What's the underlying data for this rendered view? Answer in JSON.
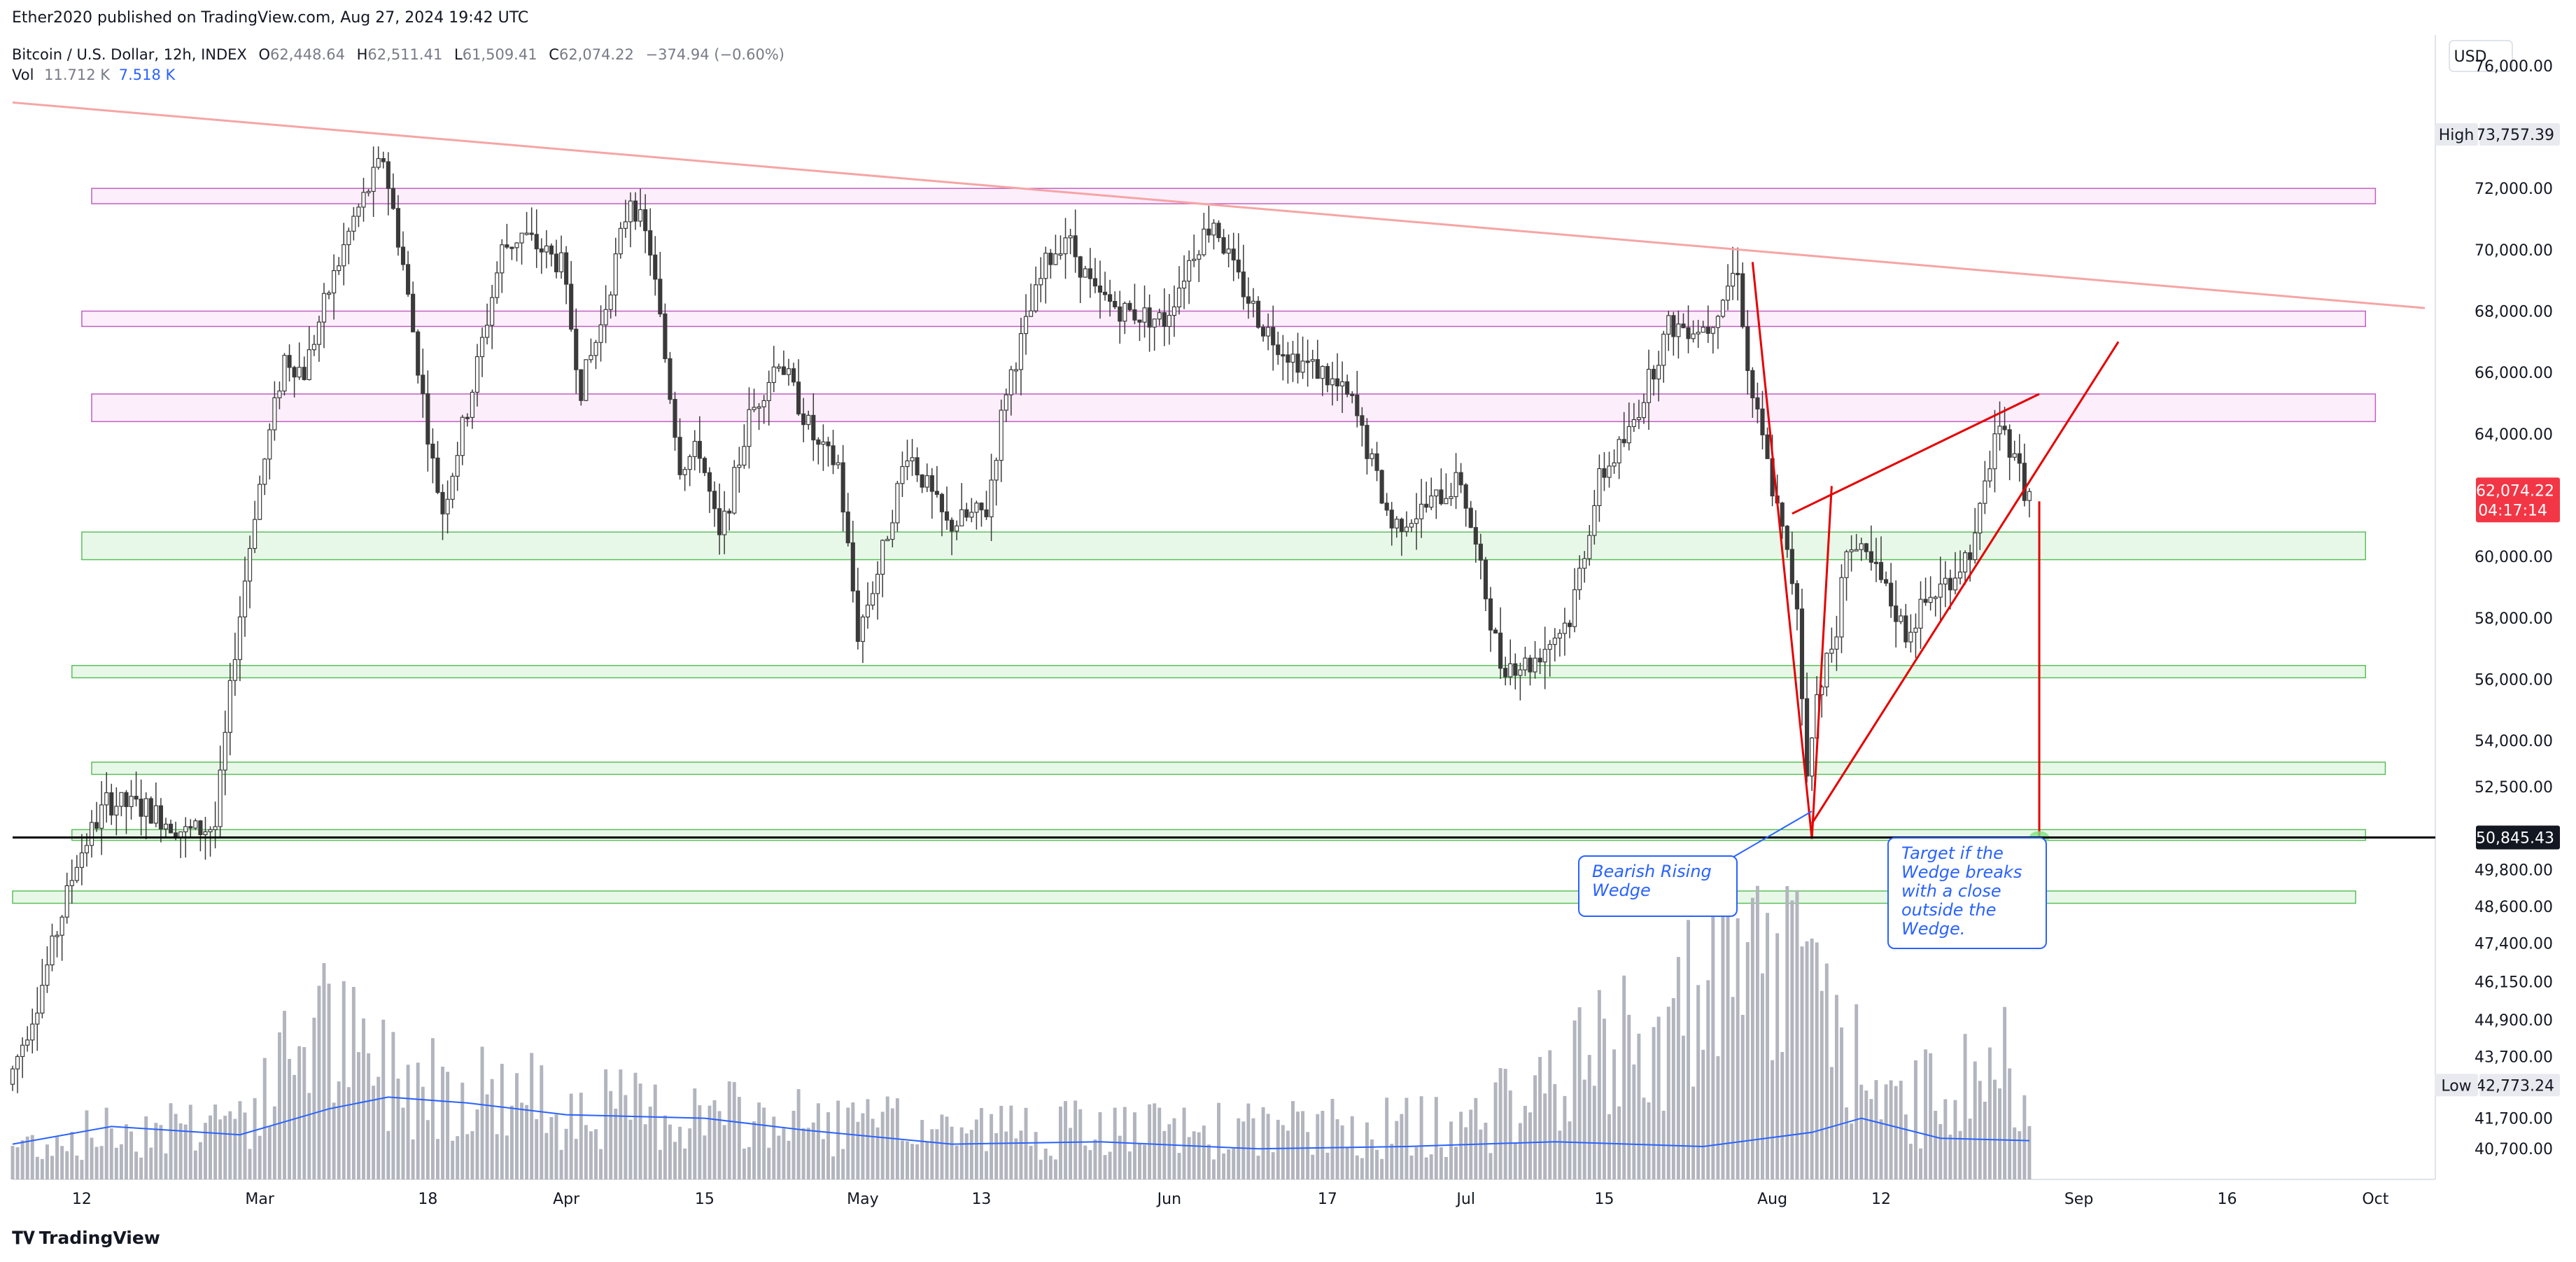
{
  "header": {
    "published": "Ether2020 published on TradingView.com, Aug 27, 2024 19:42 UTC",
    "symbol": "Bitcoin / U.S. Dollar, 12h, INDEX",
    "ohlc": {
      "open_label": "O",
      "open": "62,448.64",
      "high_label": "H",
      "high": "62,511.41",
      "low_label": "L",
      "low": "61,509.41",
      "close_label": "C",
      "close": "62,074.22",
      "change": "−374.94 (−0.60%)"
    },
    "volume": {
      "label": "Vol",
      "value": "11.712 K",
      "ma": "7.518 K"
    }
  },
  "currency": "USD",
  "markers": {
    "high": {
      "label": "High",
      "value": "73,757.39"
    },
    "low": {
      "label": "Low",
      "value": "42,773.24"
    },
    "last": {
      "value": "62,074.22",
      "countdown": "04:17:14"
    },
    "level": {
      "value": "50,845.43"
    }
  },
  "annotations": {
    "wedge": "Bearish Rising Wedge",
    "target": "Target if the Wedge breaks with a close outside the Wedge."
  },
  "branding": "TradingView",
  "colors": {
    "up_candle": "#ffffff",
    "down_candle": "#3a3a3a",
    "wick": "#3a3a3a",
    "volume_bar": "#b2b5be",
    "volume_ma": "#2962ff",
    "resistance_zone_fill": "#fdeefb",
    "resistance_zone_stroke": "#c060c0",
    "support_zone_fill": "#e8f8e8",
    "support_zone_stroke": "#5cbf5c",
    "wedge": "#e60000",
    "trendline": "#f5a5a5",
    "last_price": "#f23645",
    "level_line": "#000000"
  },
  "chart_data": {
    "type": "candlestick",
    "interval": "12h",
    "x_start": "2024-02-05",
    "x_end": "2024-10-06",
    "xticks": [
      {
        "date": "2024-02-12",
        "label": "12"
      },
      {
        "date": "2024-03-01",
        "label": "Mar"
      },
      {
        "date": "2024-03-18",
        "label": "18"
      },
      {
        "date": "2024-04-01",
        "label": "Apr"
      },
      {
        "date": "2024-04-15",
        "label": "15"
      },
      {
        "date": "2024-05-01",
        "label": "May"
      },
      {
        "date": "2024-05-13",
        "label": "13"
      },
      {
        "date": "2024-06-01",
        "label": "Jun"
      },
      {
        "date": "2024-06-17",
        "label": "17"
      },
      {
        "date": "2024-07-01",
        "label": "Jul"
      },
      {
        "date": "2024-07-15",
        "label": "15"
      },
      {
        "date": "2024-08-01",
        "label": "Aug"
      },
      {
        "date": "2024-08-12",
        "label": "12"
      },
      {
        "date": "2024-09-01",
        "label": "Sep"
      },
      {
        "date": "2024-09-16",
        "label": "16"
      },
      {
        "date": "2024-10-01",
        "label": "Oct"
      }
    ],
    "ylim": [
      39700,
      77000
    ],
    "yticks": [
      {
        "value": 76000,
        "label": "76,000.00"
      },
      {
        "value": 72000,
        "label": "72,000.00"
      },
      {
        "value": 70000,
        "label": "70,000.00"
      },
      {
        "value": 68000,
        "label": "68,000.00"
      },
      {
        "value": 66000,
        "label": "66,000.00"
      },
      {
        "value": 64000,
        "label": "64,000.00"
      },
      {
        "value": 60000,
        "label": "60,000.00"
      },
      {
        "value": 58000,
        "label": "58,000.00"
      },
      {
        "value": 56000,
        "label": "56,000.00"
      },
      {
        "value": 54000,
        "label": "54,000.00"
      },
      {
        "value": 52500,
        "label": "52,500.00"
      },
      {
        "value": 49800,
        "label": "49,800.00"
      },
      {
        "value": 48600,
        "label": "48,600.00"
      },
      {
        "value": 47400,
        "label": "47,400.00"
      },
      {
        "value": 46150,
        "label": "46,150.00"
      },
      {
        "value": 44900,
        "label": "44,900.00"
      },
      {
        "value": 43700,
        "label": "43,700.00"
      },
      {
        "value": 41700,
        "label": "41,700.00"
      },
      {
        "value": 40700,
        "label": "40,700.00"
      }
    ],
    "price_path": [
      {
        "date": "2024-02-05",
        "price": 42800
      },
      {
        "date": "2024-02-08",
        "price": 45500
      },
      {
        "date": "2024-02-10",
        "price": 47800
      },
      {
        "date": "2024-02-12",
        "price": 50100
      },
      {
        "date": "2024-02-15",
        "price": 52000
      },
      {
        "date": "2024-02-19",
        "price": 51800
      },
      {
        "date": "2024-02-23",
        "price": 51000
      },
      {
        "date": "2024-02-26",
        "price": 51200
      },
      {
        "date": "2024-02-28",
        "price": 57000
      },
      {
        "date": "2024-03-01",
        "price": 61500
      },
      {
        "date": "2024-03-04",
        "price": 66500
      },
      {
        "date": "2024-03-06",
        "price": 66000
      },
      {
        "date": "2024-03-08",
        "price": 68200
      },
      {
        "date": "2024-03-11",
        "price": 71000
      },
      {
        "date": "2024-03-14",
        "price": 73000
      },
      {
        "date": "2024-03-16",
        "price": 69500
      },
      {
        "date": "2024-03-19",
        "price": 63000
      },
      {
        "date": "2024-03-20",
        "price": 61500
      },
      {
        "date": "2024-03-23",
        "price": 65500
      },
      {
        "date": "2024-03-26",
        "price": 70000
      },
      {
        "date": "2024-03-28",
        "price": 70500
      },
      {
        "date": "2024-04-01",
        "price": 69500
      },
      {
        "date": "2024-04-03",
        "price": 65500
      },
      {
        "date": "2024-04-05",
        "price": 67500
      },
      {
        "date": "2024-04-08",
        "price": 71800
      },
      {
        "date": "2024-04-10",
        "price": 70000
      },
      {
        "date": "2024-04-13",
        "price": 63000
      },
      {
        "date": "2024-04-15",
        "price": 63500
      },
      {
        "date": "2024-04-17",
        "price": 60500
      },
      {
        "date": "2024-04-20",
        "price": 64500
      },
      {
        "date": "2024-04-23",
        "price": 66500
      },
      {
        "date": "2024-04-27",
        "price": 63500
      },
      {
        "date": "2024-04-29",
        "price": 63000
      },
      {
        "date": "2024-05-01",
        "price": 57500
      },
      {
        "date": "2024-05-03",
        "price": 59500
      },
      {
        "date": "2024-05-06",
        "price": 63500
      },
      {
        "date": "2024-05-10",
        "price": 61000
      },
      {
        "date": "2024-05-14",
        "price": 61500
      },
      {
        "date": "2024-05-16",
        "price": 65500
      },
      {
        "date": "2024-05-20",
        "price": 69500
      },
      {
        "date": "2024-05-22",
        "price": 70500
      },
      {
        "date": "2024-05-25",
        "price": 68500
      },
      {
        "date": "2024-05-28",
        "price": 68000
      },
      {
        "date": "2024-06-01",
        "price": 67700
      },
      {
        "date": "2024-06-04",
        "price": 70000
      },
      {
        "date": "2024-06-06",
        "price": 71000
      },
      {
        "date": "2024-06-08",
        "price": 69300
      },
      {
        "date": "2024-06-11",
        "price": 67500
      },
      {
        "date": "2024-06-14",
        "price": 66500
      },
      {
        "date": "2024-06-17",
        "price": 66000
      },
      {
        "date": "2024-06-20",
        "price": 65000
      },
      {
        "date": "2024-06-24",
        "price": 61000
      },
      {
        "date": "2024-06-27",
        "price": 61500
      },
      {
        "date": "2024-07-01",
        "price": 62500
      },
      {
        "date": "2024-07-05",
        "price": 56500
      },
      {
        "date": "2024-07-08",
        "price": 56500
      },
      {
        "date": "2024-07-12",
        "price": 58000
      },
      {
        "date": "2024-07-15",
        "price": 62500
      },
      {
        "date": "2024-07-18",
        "price": 64000
      },
      {
        "date": "2024-07-22",
        "price": 67500
      },
      {
        "date": "2024-07-26",
        "price": 67500
      },
      {
        "date": "2024-07-29",
        "price": 69500
      },
      {
        "date": "2024-07-30",
        "price": 66000
      },
      {
        "date": "2024-08-02",
        "price": 61500
      },
      {
        "date": "2024-08-04",
        "price": 58500
      },
      {
        "date": "2024-08-05",
        "price": 52500
      },
      {
        "date": "2024-08-06",
        "price": 55500
      },
      {
        "date": "2024-08-08",
        "price": 57500
      },
      {
        "date": "2024-08-09",
        "price": 60500
      },
      {
        "date": "2024-08-12",
        "price": 59500
      },
      {
        "date": "2024-08-15",
        "price": 57500
      },
      {
        "date": "2024-08-17",
        "price": 58500
      },
      {
        "date": "2024-08-20",
        "price": 59500
      },
      {
        "date": "2024-08-22",
        "price": 60500
      },
      {
        "date": "2024-08-24",
        "price": 64000
      },
      {
        "date": "2024-08-26",
        "price": 63500
      },
      {
        "date": "2024-08-27",
        "price": 62074.22
      }
    ],
    "volume_path": [
      {
        "date": "2024-02-05",
        "value": 3.2
      },
      {
        "date": "2024-03-01",
        "value": 6.5
      },
      {
        "date": "2024-03-06",
        "value": 15.0
      },
      {
        "date": "2024-03-12",
        "value": 10.5
      },
      {
        "date": "2024-04-01",
        "value": 7.0
      },
      {
        "date": "2024-04-15",
        "value": 6.0
      },
      {
        "date": "2024-05-01",
        "value": 5.0
      },
      {
        "date": "2024-06-01",
        "value": 4.5
      },
      {
        "date": "2024-07-01",
        "value": 5.0
      },
      {
        "date": "2024-08-05",
        "value": 21.0
      },
      {
        "date": "2024-08-12",
        "value": 6.0
      },
      {
        "date": "2024-08-27",
        "value": 11.712
      }
    ],
    "volume_max": 25,
    "volume_ma_path": [
      {
        "date": "2024-02-05",
        "value": 3.0
      },
      {
        "date": "2024-02-15",
        "value": 4.5
      },
      {
        "date": "2024-02-28",
        "value": 3.8
      },
      {
        "date": "2024-03-08",
        "value": 6.0
      },
      {
        "date": "2024-03-14",
        "value": 7.0
      },
      {
        "date": "2024-03-22",
        "value": 6.5
      },
      {
        "date": "2024-04-01",
        "value": 5.5
      },
      {
        "date": "2024-04-15",
        "value": 5.2
      },
      {
        "date": "2024-04-25",
        "value": 4.2
      },
      {
        "date": "2024-05-10",
        "value": 3.0
      },
      {
        "date": "2024-05-25",
        "value": 3.2
      },
      {
        "date": "2024-06-10",
        "value": 2.6
      },
      {
        "date": "2024-06-25",
        "value": 2.8
      },
      {
        "date": "2024-07-10",
        "value": 3.2
      },
      {
        "date": "2024-07-25",
        "value": 2.8
      },
      {
        "date": "2024-08-05",
        "value": 4.0
      },
      {
        "date": "2024-08-10",
        "value": 5.2
      },
      {
        "date": "2024-08-18",
        "value": 3.5
      },
      {
        "date": "2024-08-27",
        "value": 3.3
      }
    ],
    "resistance_zones": [
      {
        "x1": "2024-02-13",
        "x2": "2024-10-01",
        "y1": 72000,
        "y2": 71500
      },
      {
        "x1": "2024-02-12",
        "x2": "2024-09-30",
        "y1": 68000,
        "y2": 67500
      },
      {
        "x1": "2024-02-13",
        "x2": "2024-10-01",
        "y1": 65300,
        "y2": 64400
      }
    ],
    "support_zones": [
      {
        "x1": "2024-02-12",
        "x2": "2024-09-30",
        "y1": 60800,
        "y2": 59900
      },
      {
        "x1": "2024-02-11",
        "x2": "2024-09-30",
        "y1": 56450,
        "y2": 56050
      },
      {
        "x1": "2024-02-13",
        "x2": "2024-10-02",
        "y1": 53300,
        "y2": 52900
      },
      {
        "x1": "2024-02-11",
        "x2": "2024-09-30",
        "y1": 51100,
        "y2": 50750
      },
      {
        "x1": "2024-02-05",
        "x2": "2024-09-29",
        "y1": 49100,
        "y2": 48700
      }
    ],
    "trendline": {
      "x1": "2024-02-05",
      "y1": 74800,
      "x2": "2024-10-06",
      "y2": 68100
    },
    "wedge_lines": [
      {
        "x1": "2024-08-05",
        "y1": 51300,
        "x2": "2024-09-05",
        "y2": 67000
      },
      {
        "x1": "2024-08-03",
        "y1": 61400,
        "x2": "2024-08-28",
        "y2": 65300
      },
      {
        "x1": "2024-07-30",
        "y1": 69600,
        "x2": "2024-08-05",
        "y2": 50800
      },
      {
        "x1": "2024-08-05",
        "y1": 50800,
        "x2": "2024-08-07",
        "y2": 62300
      }
    ],
    "target_line": {
      "date": "2024-08-28",
      "from": 61800,
      "to": 50845.43
    },
    "target_zone": {
      "x1": "2024-08-27",
      "x2": "2024-08-29",
      "y1": 51050,
      "y2": 50650
    },
    "level_line_value": 50845.43,
    "callouts": [
      {
        "from_date": "2024-07-20",
        "from_price": 48700,
        "to_date": "2024-08-05",
        "to_price": 51700
      },
      {
        "from_date": "2024-08-19",
        "from_price": 48500,
        "to_date": "2024-08-27",
        "to_price": 50600
      }
    ]
  }
}
